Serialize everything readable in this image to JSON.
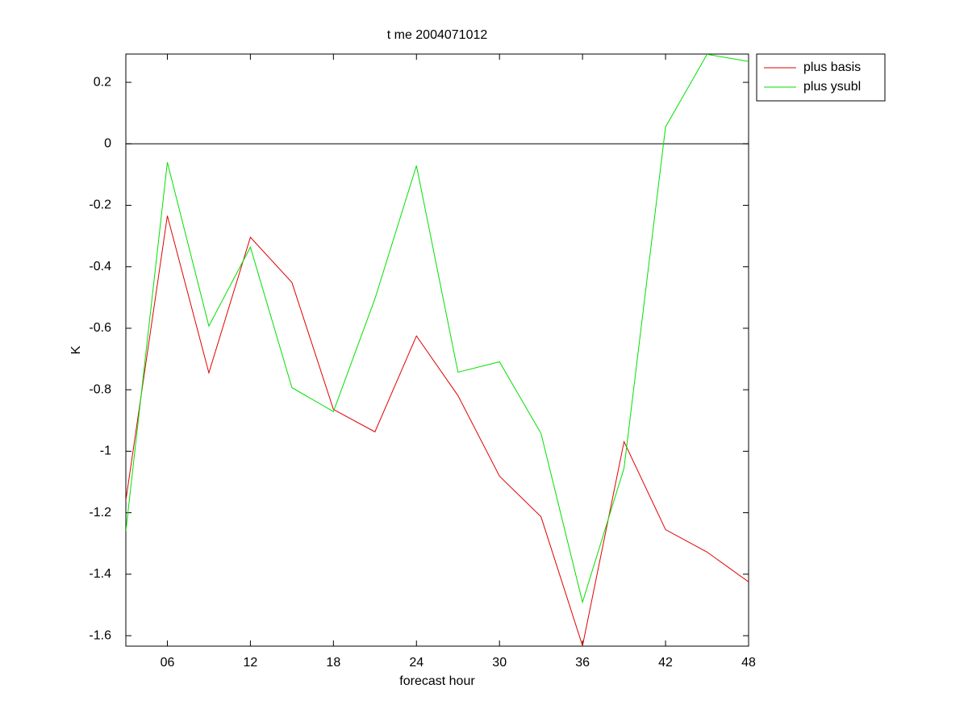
{
  "chart_data": {
    "type": "line",
    "title": "t me 2004071012",
    "x_label": "forecast hour",
    "y_label": "K",
    "x": [
      3,
      6,
      9,
      12,
      15,
      18,
      21,
      24,
      27,
      30,
      33,
      36,
      39,
      42,
      45,
      48
    ],
    "series": [
      {
        "name": "plus basis",
        "color": "#e00000",
        "values": [
          -1.16,
          -0.234,
          -0.745,
          -0.304,
          -0.451,
          -0.864,
          -0.937,
          -0.625,
          -0.819,
          -1.081,
          -1.213,
          -1.633,
          -0.969,
          -1.255,
          -1.328,
          -1.425
        ]
      },
      {
        "name": "plus ysubl",
        "color": "#00e000",
        "values": [
          -1.26,
          -0.06,
          -0.593,
          -0.336,
          -0.793,
          -0.871,
          -0.504,
          -0.071,
          -0.743,
          -0.709,
          -0.942,
          -1.491,
          -1.055,
          0.055,
          0.291,
          0.268
        ]
      }
    ],
    "xlim": [
      3,
      48
    ],
    "xticks": [
      {
        "value": 6,
        "label": "06"
      },
      12,
      18,
      24,
      30,
      36,
      42,
      48
    ],
    "ylim": [
      -1.634,
      0.292
    ],
    "yticks": [
      -1.6,
      -1.4,
      -1.2,
      -1,
      -0.8,
      -0.6,
      -0.4,
      -0.2,
      0,
      0.2
    ],
    "hline": 0,
    "legend": "outside-top-right"
  }
}
